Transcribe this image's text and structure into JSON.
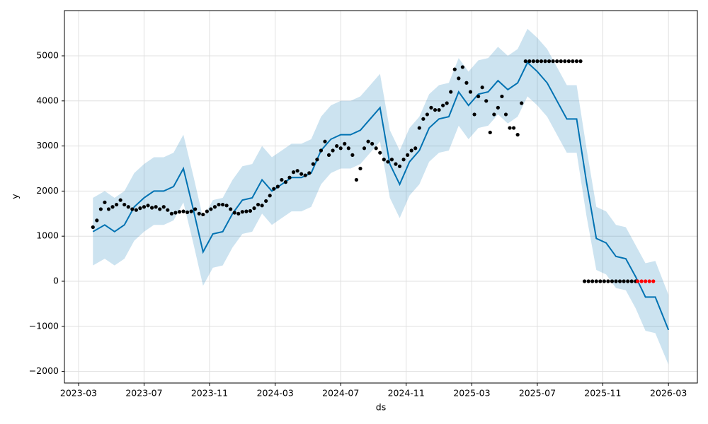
{
  "chart_data": {
    "type": "line",
    "xlabel": "ds",
    "ylabel": "y",
    "xlim": [
      2023.095,
      2026.314
    ],
    "ylim": [
      -2257,
      6003
    ],
    "grid": true,
    "xticks": [
      {
        "value": 2023.167,
        "label": "2023-03"
      },
      {
        "value": 2023.5,
        "label": "2023-07"
      },
      {
        "value": 2023.833,
        "label": "2023-11"
      },
      {
        "value": 2024.167,
        "label": "2024-03"
      },
      {
        "value": 2024.5,
        "label": "2024-07"
      },
      {
        "value": 2024.833,
        "label": "2024-11"
      },
      {
        "value": 2025.167,
        "label": "2025-03"
      },
      {
        "value": 2025.5,
        "label": "2025-07"
      },
      {
        "value": 2025.833,
        "label": "2025-11"
      },
      {
        "value": 2026.167,
        "label": "2026-03"
      }
    ],
    "yticks": [
      {
        "value": -2000,
        "label": "−2000"
      },
      {
        "value": -1000,
        "label": "−1000"
      },
      0,
      1000,
      2000,
      3000,
      4000,
      5000
    ],
    "series": [
      {
        "type": "band",
        "color": "#0072B2",
        "x": [
          2023.24,
          2023.3,
          2023.35,
          2023.4,
          2023.45,
          2023.5,
          2023.55,
          2023.6,
          2023.65,
          2023.7,
          2023.75,
          2023.8,
          2023.85,
          2023.9,
          2023.95,
          2024.0,
          2024.05,
          2024.1,
          2024.15,
          2024.2,
          2024.25,
          2024.3,
          2024.35,
          2024.4,
          2024.45,
          2024.5,
          2024.55,
          2024.6,
          2024.65,
          2024.7,
          2024.75,
          2024.8,
          2024.85,
          2024.9,
          2024.95,
          2025.0,
          2025.05,
          2025.1,
          2025.15,
          2025.2,
          2025.25,
          2025.3,
          2025.35,
          2025.4,
          2025.45,
          2025.5,
          2025.55,
          2025.6,
          2025.65,
          2025.7,
          2025.75,
          2025.8,
          2025.85,
          2025.9,
          2025.95,
          2026.0,
          2026.05,
          2026.1,
          2026.167
        ],
        "values": [
          1100,
          1250,
          1100,
          1250,
          1650,
          1850,
          2000,
          2000,
          2100,
          2500,
          1600,
          650,
          1050,
          1100,
          1500,
          1800,
          1850,
          2250,
          2000,
          2150,
          2300,
          2300,
          2400,
          2900,
          3150,
          3250,
          3250,
          3350,
          3600,
          3850,
          2600,
          2150,
          2650,
          2900,
          3400,
          3600,
          3650,
          4200,
          3900,
          4150,
          4200,
          4450,
          4250,
          4400,
          4850,
          4650,
          4400,
          4000,
          3600,
          3600,
          2200,
          950,
          850,
          550,
          500,
          100,
          -350,
          -350,
          -1080
        ],
        "upper": [
          1850,
          2000,
          1850,
          2000,
          2400,
          2600,
          2750,
          2750,
          2850,
          3250,
          2350,
          1400,
          1800,
          1850,
          2250,
          2550,
          2600,
          3000,
          2750,
          2900,
          3050,
          3050,
          3150,
          3650,
          3900,
          4000,
          4000,
          4100,
          4350,
          4600,
          3350,
          2900,
          3400,
          3650,
          4150,
          4350,
          4400,
          4950,
          4650,
          4900,
          4950,
          5200,
          5000,
          5150,
          5600,
          5400,
          5150,
          4750,
          4350,
          4350,
          2950,
          1650,
          1550,
          1250,
          1200,
          800,
          400,
          450,
          -300
        ],
        "lower": [
          350,
          500,
          350,
          500,
          900,
          1100,
          1250,
          1250,
          1350,
          1750,
          850,
          -100,
          300,
          350,
          750,
          1050,
          1100,
          1500,
          1250,
          1400,
          1550,
          1550,
          1650,
          2150,
          2400,
          2500,
          2500,
          2600,
          2850,
          3100,
          1850,
          1400,
          1900,
          2150,
          2650,
          2850,
          2900,
          3450,
          3150,
          3400,
          3450,
          3700,
          3500,
          3650,
          4100,
          3900,
          3650,
          3250,
          2850,
          2850,
          1450,
          250,
          150,
          -150,
          -200,
          -600,
          -1100,
          -1150,
          -1850
        ]
      },
      {
        "type": "scatter",
        "color": "#000000",
        "x": [
          2023.24,
          2023.26,
          2023.28,
          2023.3,
          2023.32,
          2023.34,
          2023.36,
          2023.38,
          2023.4,
          2023.42,
          2023.44,
          2023.46,
          2023.48,
          2023.5,
          2023.52,
          2023.54,
          2023.56,
          2023.58,
          2023.6,
          2023.62,
          2023.64,
          2023.66,
          2023.68,
          2023.7,
          2023.72,
          2023.74,
          2023.76,
          2023.78,
          2023.8,
          2023.82,
          2023.84,
          2023.86,
          2023.88,
          2023.9,
          2023.92,
          2023.94,
          2023.96,
          2023.98,
          2024.0,
          2024.02,
          2024.04,
          2024.06,
          2024.08,
          2024.1,
          2024.12,
          2024.14,
          2024.16,
          2024.18,
          2024.2,
          2024.22,
          2024.24,
          2024.26,
          2024.28,
          2024.3,
          2024.32,
          2024.34,
          2024.36,
          2024.38,
          2024.4,
          2024.42,
          2024.44,
          2024.46,
          2024.48,
          2024.5,
          2024.52,
          2024.54,
          2024.56,
          2024.58,
          2024.6,
          2024.62,
          2024.64,
          2024.66,
          2024.68,
          2024.7,
          2024.72,
          2024.74,
          2024.76,
          2024.78,
          2024.8,
          2024.82,
          2024.84,
          2024.86,
          2024.88,
          2024.9,
          2024.92,
          2024.94,
          2024.96,
          2024.98,
          2025.0,
          2025.02,
          2025.04,
          2025.06,
          2025.08,
          2025.1,
          2025.12,
          2025.14,
          2025.16,
          2025.18,
          2025.2,
          2025.22,
          2025.24,
          2025.26,
          2025.28,
          2025.3,
          2025.32,
          2025.34,
          2025.36,
          2025.38,
          2025.4,
          2025.42,
          2025.44,
          2025.46,
          2025.48,
          2025.5,
          2025.52,
          2025.54,
          2025.56,
          2025.58,
          2025.6,
          2025.62,
          2025.64,
          2025.66,
          2025.68,
          2025.7,
          2025.72,
          2025.74,
          2025.76,
          2025.78,
          2025.8,
          2025.82,
          2025.84,
          2025.86,
          2025.88,
          2025.9,
          2025.92,
          2025.94,
          2025.96,
          2025.98,
          2026.0
        ],
        "values": [
          1200,
          1350,
          1600,
          1750,
          1600,
          1650,
          1700,
          1800,
          1700,
          1650,
          1600,
          1580,
          1620,
          1650,
          1680,
          1630,
          1650,
          1600,
          1650,
          1580,
          1500,
          1520,
          1540,
          1550,
          1530,
          1550,
          1600,
          1500,
          1480,
          1550,
          1600,
          1650,
          1700,
          1700,
          1680,
          1600,
          1520,
          1500,
          1540,
          1550,
          1560,
          1620,
          1700,
          1680,
          1780,
          1900,
          2050,
          2100,
          2250,
          2200,
          2300,
          2420,
          2450,
          2380,
          2350,
          2400,
          2600,
          2700,
          2900,
          3100,
          2800,
          2900,
          3000,
          2950,
          3050,
          2950,
          2800,
          2250,
          2500,
          2950,
          3100,
          3050,
          2950,
          2850,
          2700,
          2650,
          2700,
          2600,
          2550,
          2700,
          2800,
          2900,
          2950,
          3400,
          3600,
          3700,
          3850,
          3800,
          3800,
          3900,
          3950,
          4200,
          4700,
          4500,
          4750,
          4400,
          4200,
          3700,
          4100,
          4300,
          4000,
          3300,
          3700,
          3850,
          4100,
          3700,
          3400,
          3400,
          3250,
          3950,
          4880,
          4880,
          4880,
          4880,
          4880,
          4880,
          4880,
          4880,
          4880,
          4880,
          4880,
          4880,
          4880,
          4880,
          4880,
          0,
          0,
          0,
          0,
          0,
          0,
          0,
          0,
          0,
          0,
          0,
          0,
          0,
          0
        ]
      },
      {
        "type": "scatter",
        "color": "#ff0000",
        "x": [
          2026.01,
          2026.03,
          2026.05,
          2026.07,
          2026.09
        ],
        "values": [
          0,
          0,
          0,
          0,
          0
        ]
      }
    ]
  }
}
